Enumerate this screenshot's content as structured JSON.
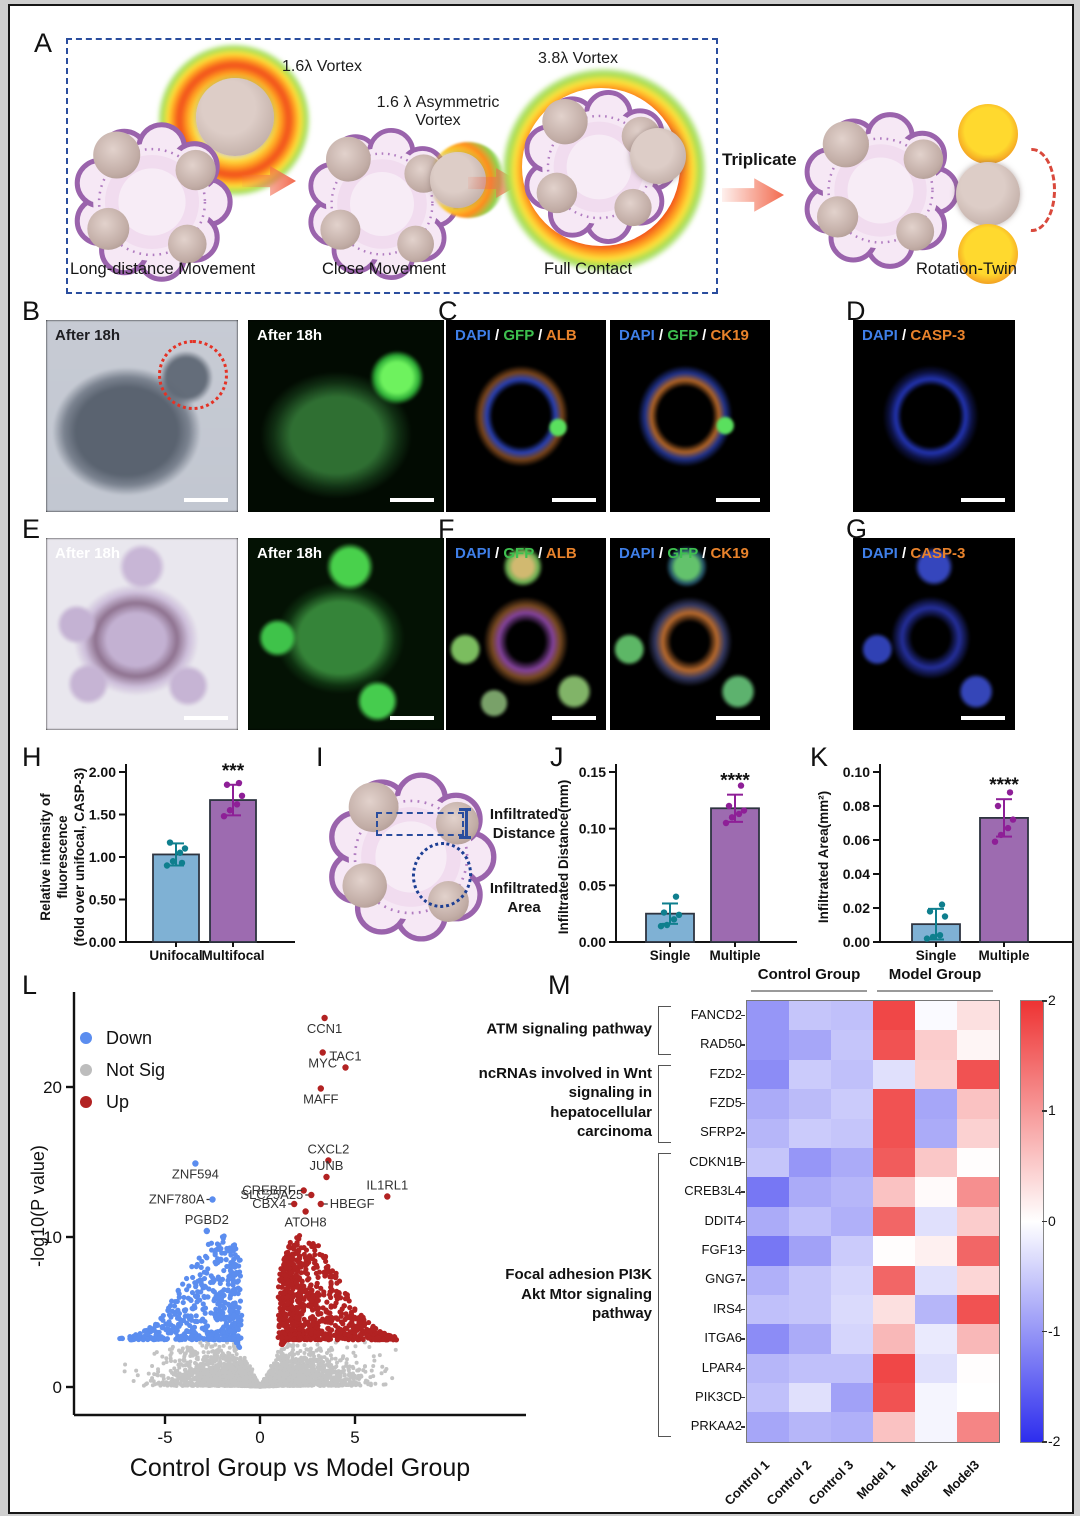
{
  "panels": {
    "A": "A",
    "B": "B",
    "C": "C",
    "D": "D",
    "E": "E",
    "F": "F",
    "G": "G",
    "H": "H",
    "I": "I",
    "J": "J",
    "K": "K",
    "L": "L",
    "M": "M"
  },
  "panel_a": {
    "vortex_small": "1.6λ Vortex",
    "vortex_asym": "1.6 λ Asymmetric Vortex",
    "vortex_big": "3.8λ Vortex",
    "caption1": "Long-distance Movement",
    "caption2": "Close Movement",
    "caption3": "Full Contact",
    "triplicate": "Triplicate",
    "rotation_twin": "Rotation-Twin"
  },
  "micrographs": {
    "b1": "After 18h",
    "b2": "After 18h",
    "e1": "After 18h",
    "e2": "After 18h"
  },
  "channel_sep": " / ",
  "channel_colors": {
    "DAPI": "#3f7fe8",
    "GFP": "#3ec04f",
    "ALB": "#e8822b",
    "CK19": "#e8822b",
    "CASP-3": "#e8822b",
    "sep": "#ffffff"
  },
  "channels": {
    "c1": [
      "DAPI",
      "GFP",
      "ALB"
    ],
    "c2": [
      "DAPI",
      "GFP",
      "CK19"
    ],
    "d1": [
      "DAPI",
      "CASP-3"
    ],
    "f1": [
      "DAPI",
      "GFP",
      "ALB"
    ],
    "f2": [
      "DAPI",
      "GFP",
      "CK19"
    ],
    "g1": [
      "DAPI",
      "CASP-3"
    ]
  },
  "panel_i": {
    "distance": "Infiltrated Distance",
    "area": "Infiltrated Area"
  },
  "chart_data": [
    {
      "type": "bar",
      "id": "H",
      "categories": [
        "Unifocal",
        "Multifocal"
      ],
      "values": [
        1.03,
        1.67
      ],
      "errors": [
        0.13,
        0.18
      ],
      "dots": [
        [
          0.9,
          0.95,
          1.05,
          1.1,
          1.17,
          0.93
        ],
        [
          1.48,
          1.55,
          1.62,
          1.72,
          1.85,
          1.87
        ]
      ],
      "sig": {
        "index": 1,
        "text": "***"
      },
      "ylabel_lines": [
        "Relative intensity of",
        "fluorescence",
        "(fold over unifocal, CASP-3)"
      ],
      "ylim": [
        0,
        2
      ],
      "yticks": [
        0,
        0.5,
        1,
        1.5,
        2
      ],
      "ytick_labels": [
        "0.00",
        "0.50",
        "1.00",
        "1.50",
        "2.00"
      ],
      "bar_colors": [
        "#7fb1d4",
        "#9d6bb0"
      ],
      "dot_colors": [
        "#0f7f8e",
        "#8e1f97"
      ]
    },
    {
      "type": "bar",
      "id": "J",
      "categories": [
        "Single",
        "Multiple"
      ],
      "values": [
        0.025,
        0.118
      ],
      "errors": [
        0.009,
        0.012
      ],
      "dots": [
        [
          0.014,
          0.015,
          0.02,
          0.024,
          0.026,
          0.04
        ],
        [
          0.105,
          0.11,
          0.113,
          0.116,
          0.12,
          0.138
        ]
      ],
      "sig": {
        "index": 1,
        "text": "****"
      },
      "ylabel_lines": [
        "Infiltrated Distance(mm)"
      ],
      "ylim": [
        0,
        0.15
      ],
      "yticks": [
        0,
        0.05,
        0.1,
        0.15
      ],
      "ytick_labels": [
        "0.00",
        "0.05",
        "0.10",
        "0.15"
      ],
      "bar_colors": [
        "#7fb1d4",
        "#9d6bb0"
      ],
      "dot_colors": [
        "#0f7f8e",
        "#8e1f97"
      ]
    },
    {
      "type": "bar",
      "id": "K",
      "categories": [
        "Single",
        "Multiple"
      ],
      "values": [
        0.0105,
        0.073
      ],
      "errors": [
        0.009,
        0.011
      ],
      "dots": [
        [
          0.002,
          0.003,
          0.004,
          0.015,
          0.018,
          0.022
        ],
        [
          0.059,
          0.063,
          0.067,
          0.072,
          0.08,
          0.088
        ]
      ],
      "sig": {
        "index": 1,
        "text": "****"
      },
      "ylabel_lines": [
        "Infiltrated Area(mm²)"
      ],
      "ylim": [
        0,
        0.1
      ],
      "yticks": [
        0,
        0.02,
        0.04,
        0.06,
        0.08,
        0.1
      ],
      "ytick_labels": [
        "0.00",
        "0.02",
        "0.04",
        "0.06",
        "0.08",
        "0.10"
      ],
      "bar_colors": [
        "#7fb1d4",
        "#9d6bb0"
      ],
      "dot_colors": [
        "#0f7f8e",
        "#8e1f97"
      ]
    },
    {
      "type": "scatter",
      "id": "L",
      "xlabel": "Control Group vs Model Group",
      "ylabel": "-log10(P value)",
      "xlim": [
        -9.5,
        9.0
      ],
      "ylim": [
        -1.9,
        26
      ],
      "xticks": [
        -5,
        0,
        5
      ],
      "yticks": [
        0,
        10,
        20
      ],
      "legend": [
        {
          "label": "Down",
          "color": "#5b8def"
        },
        {
          "label": "Not Sig",
          "color": "#bdbdbd"
        },
        {
          "label": "Up",
          "color": "#b22222"
        }
      ],
      "colors": {
        "down": "#5b8def",
        "notsig": "#c3c3c3",
        "up": "#b22222"
      },
      "cloud": {
        "seed": 42,
        "gray": 2600,
        "down": 520,
        "up": 850
      },
      "labeled_points": [
        {
          "gene": "CCN1",
          "x": 3.4,
          "y": 24.6,
          "anchor": "below"
        },
        {
          "gene": "MYC",
          "x": 3.3,
          "y": 22.3,
          "anchor": "below"
        },
        {
          "gene": "TAC1",
          "x": 4.5,
          "y": 21.3,
          "anchor": "above"
        },
        {
          "gene": "MAFF",
          "x": 3.2,
          "y": 19.9,
          "anchor": "below"
        },
        {
          "gene": "CXCL2",
          "x": 3.6,
          "y": 15.1,
          "anchor": "above"
        },
        {
          "gene": "ZNF594",
          "x": -3.4,
          "y": 14.9,
          "anchor": "below"
        },
        {
          "gene": "JUNB",
          "x": 3.5,
          "y": 14.0,
          "anchor": "above"
        },
        {
          "gene": "CREBRF",
          "x": 2.3,
          "y": 13.1,
          "anchor": "left"
        },
        {
          "gene": "SLC25A25",
          "x": 2.7,
          "y": 12.8,
          "anchor": "left"
        },
        {
          "gene": "ZNF780A",
          "x": -2.5,
          "y": 12.5,
          "anchor": "left"
        },
        {
          "gene": "IL1RL1",
          "x": 6.7,
          "y": 12.7,
          "anchor": "above"
        },
        {
          "gene": "CBX4",
          "x": 1.8,
          "y": 12.2,
          "anchor": "left"
        },
        {
          "gene": "HBEGF",
          "x": 3.2,
          "y": 12.2,
          "anchor": "right"
        },
        {
          "gene": "ATOH8",
          "x": 2.4,
          "y": 11.7,
          "anchor": "below"
        },
        {
          "gene": "PGBD2",
          "x": -2.8,
          "y": 10.4,
          "anchor": "above"
        }
      ]
    },
    {
      "type": "heatmap",
      "id": "M",
      "col_groups": [
        {
          "label": "Control Group",
          "cols": [
            0,
            2
          ]
        },
        {
          "label": "Model Group",
          "cols": [
            3,
            5
          ]
        }
      ],
      "columns": [
        "Control 1",
        "Control 2",
        "Control 3",
        "Model 1",
        "Model2",
        "Model3"
      ],
      "rows": [
        "FANCD2",
        "RAD50",
        "FZD2",
        "FZD5",
        "SFRP2",
        "CDKN1B",
        "CREB3L4",
        "DDIT4",
        "FGF13",
        "GNG7",
        "IRS4",
        "ITGA6",
        "LPAR4",
        "PIK3CD",
        "PRKAA2"
      ],
      "values": [
        [
          -1.0,
          -0.55,
          -0.6,
          1.8,
          -0.05,
          0.3
        ],
        [
          -1.0,
          -0.85,
          -0.55,
          1.7,
          0.5,
          0.1
        ],
        [
          -1.1,
          -0.5,
          -0.6,
          -0.3,
          0.45,
          1.7
        ],
        [
          -0.8,
          -0.65,
          -0.5,
          1.7,
          -0.85,
          0.6
        ],
        [
          -0.7,
          -0.5,
          -0.55,
          1.7,
          -0.8,
          0.45
        ],
        [
          -0.55,
          -1.0,
          -0.8,
          1.6,
          0.55,
          0.02
        ],
        [
          -1.3,
          -0.8,
          -0.7,
          0.6,
          0.05,
          1.1
        ],
        [
          -0.8,
          -0.6,
          -0.75,
          1.5,
          -0.3,
          0.5
        ],
        [
          -1.3,
          -0.9,
          -0.5,
          0.02,
          0.15,
          1.5
        ],
        [
          -0.75,
          -0.55,
          -0.4,
          1.5,
          -0.3,
          0.4
        ],
        [
          -0.6,
          -0.55,
          -0.35,
          0.3,
          -0.7,
          1.7
        ],
        [
          -1.1,
          -0.8,
          -0.4,
          0.7,
          -0.2,
          0.7
        ],
        [
          -0.7,
          -0.6,
          -0.6,
          1.8,
          -0.3,
          0.02
        ],
        [
          -0.6,
          -0.3,
          -0.9,
          1.7,
          -0.1,
          0.0
        ],
        [
          -0.85,
          -0.7,
          -0.75,
          0.6,
          -0.1,
          1.2
        ]
      ],
      "pathways": [
        {
          "label": "ATM signaling pathway",
          "rows": [
            0,
            1
          ]
        },
        {
          "label": "ncRNAs involved in Wnt signaling in hepatocellular carcinoma",
          "rows": [
            2,
            4
          ]
        },
        {
          "label": "Focal adhesion PI3K Akt Mtor signaling pathway",
          "rows": [
            5,
            14
          ]
        }
      ],
      "domain": [
        -2,
        2
      ],
      "colorbar_ticks": [
        "2",
        "1",
        "0",
        "-1",
        "-2"
      ]
    }
  ]
}
